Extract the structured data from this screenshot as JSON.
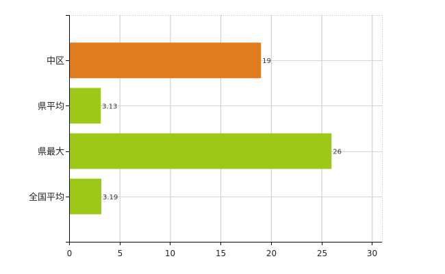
{
  "chart_data": {
    "type": "bar",
    "orientation": "horizontal",
    "categories": [
      "中区",
      "県平均",
      "県最大",
      "全国平均"
    ],
    "values": [
      19,
      3.13,
      26,
      3.19
    ],
    "value_labels": [
      "19",
      "3.13",
      "26",
      "3.19"
    ],
    "bar_colors": [
      "#e07b1f",
      "#9dc81a",
      "#9dc81a",
      "#9dc81a"
    ],
    "xlim": [
      0,
      31
    ],
    "xticks": [
      0,
      5,
      10,
      15,
      20,
      25,
      30
    ],
    "grid": true,
    "grid_style": "dotted",
    "title": "",
    "xlabel": "",
    "ylabel": ""
  }
}
